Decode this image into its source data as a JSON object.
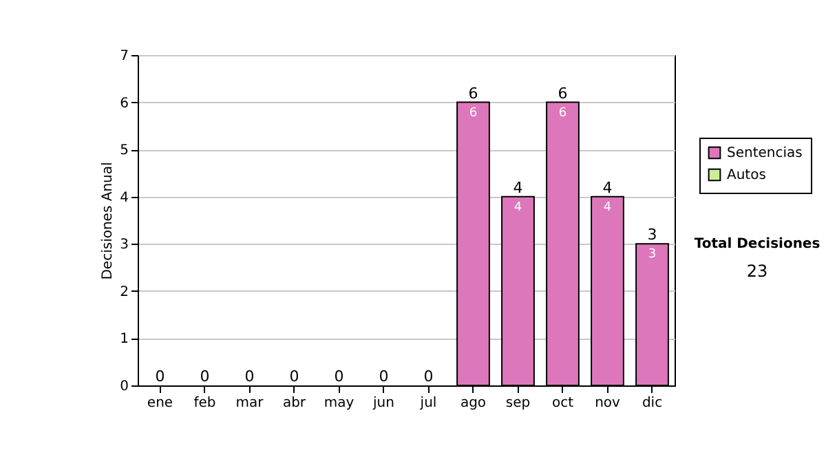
{
  "chart_data": {
    "type": "bar",
    "ylabel": "Decisiones Anual",
    "categories": [
      "ene",
      "feb",
      "mar",
      "abr",
      "may",
      "jun",
      "jul",
      "ago",
      "sep",
      "oct",
      "nov",
      "dic"
    ],
    "series": [
      {
        "name": "Sentencias",
        "color": "#dd77bb",
        "values": [
          0,
          0,
          0,
          0,
          0,
          0,
          0,
          6,
          4,
          6,
          4,
          3
        ],
        "value_labels": [
          null,
          null,
          null,
          null,
          null,
          null,
          null,
          "6",
          "4",
          "6",
          "4",
          "3"
        ]
      },
      {
        "name": "Autos",
        "color": "#ccee99",
        "values": [
          0,
          0,
          0,
          0,
          0,
          0,
          0,
          0,
          0,
          0,
          0,
          0
        ]
      }
    ],
    "stacked": true,
    "totals": [
      "0",
      "0",
      "0",
      "0",
      "0",
      "0",
      "0",
      "6",
      "4",
      "6",
      "4",
      "3"
    ],
    "ylim": [
      0,
      7
    ],
    "yticks": [
      0,
      1,
      2,
      3,
      4,
      5,
      6,
      7
    ],
    "grid": "y",
    "legend": "right",
    "annotations": [
      "Total Decisiones",
      "23"
    ]
  }
}
